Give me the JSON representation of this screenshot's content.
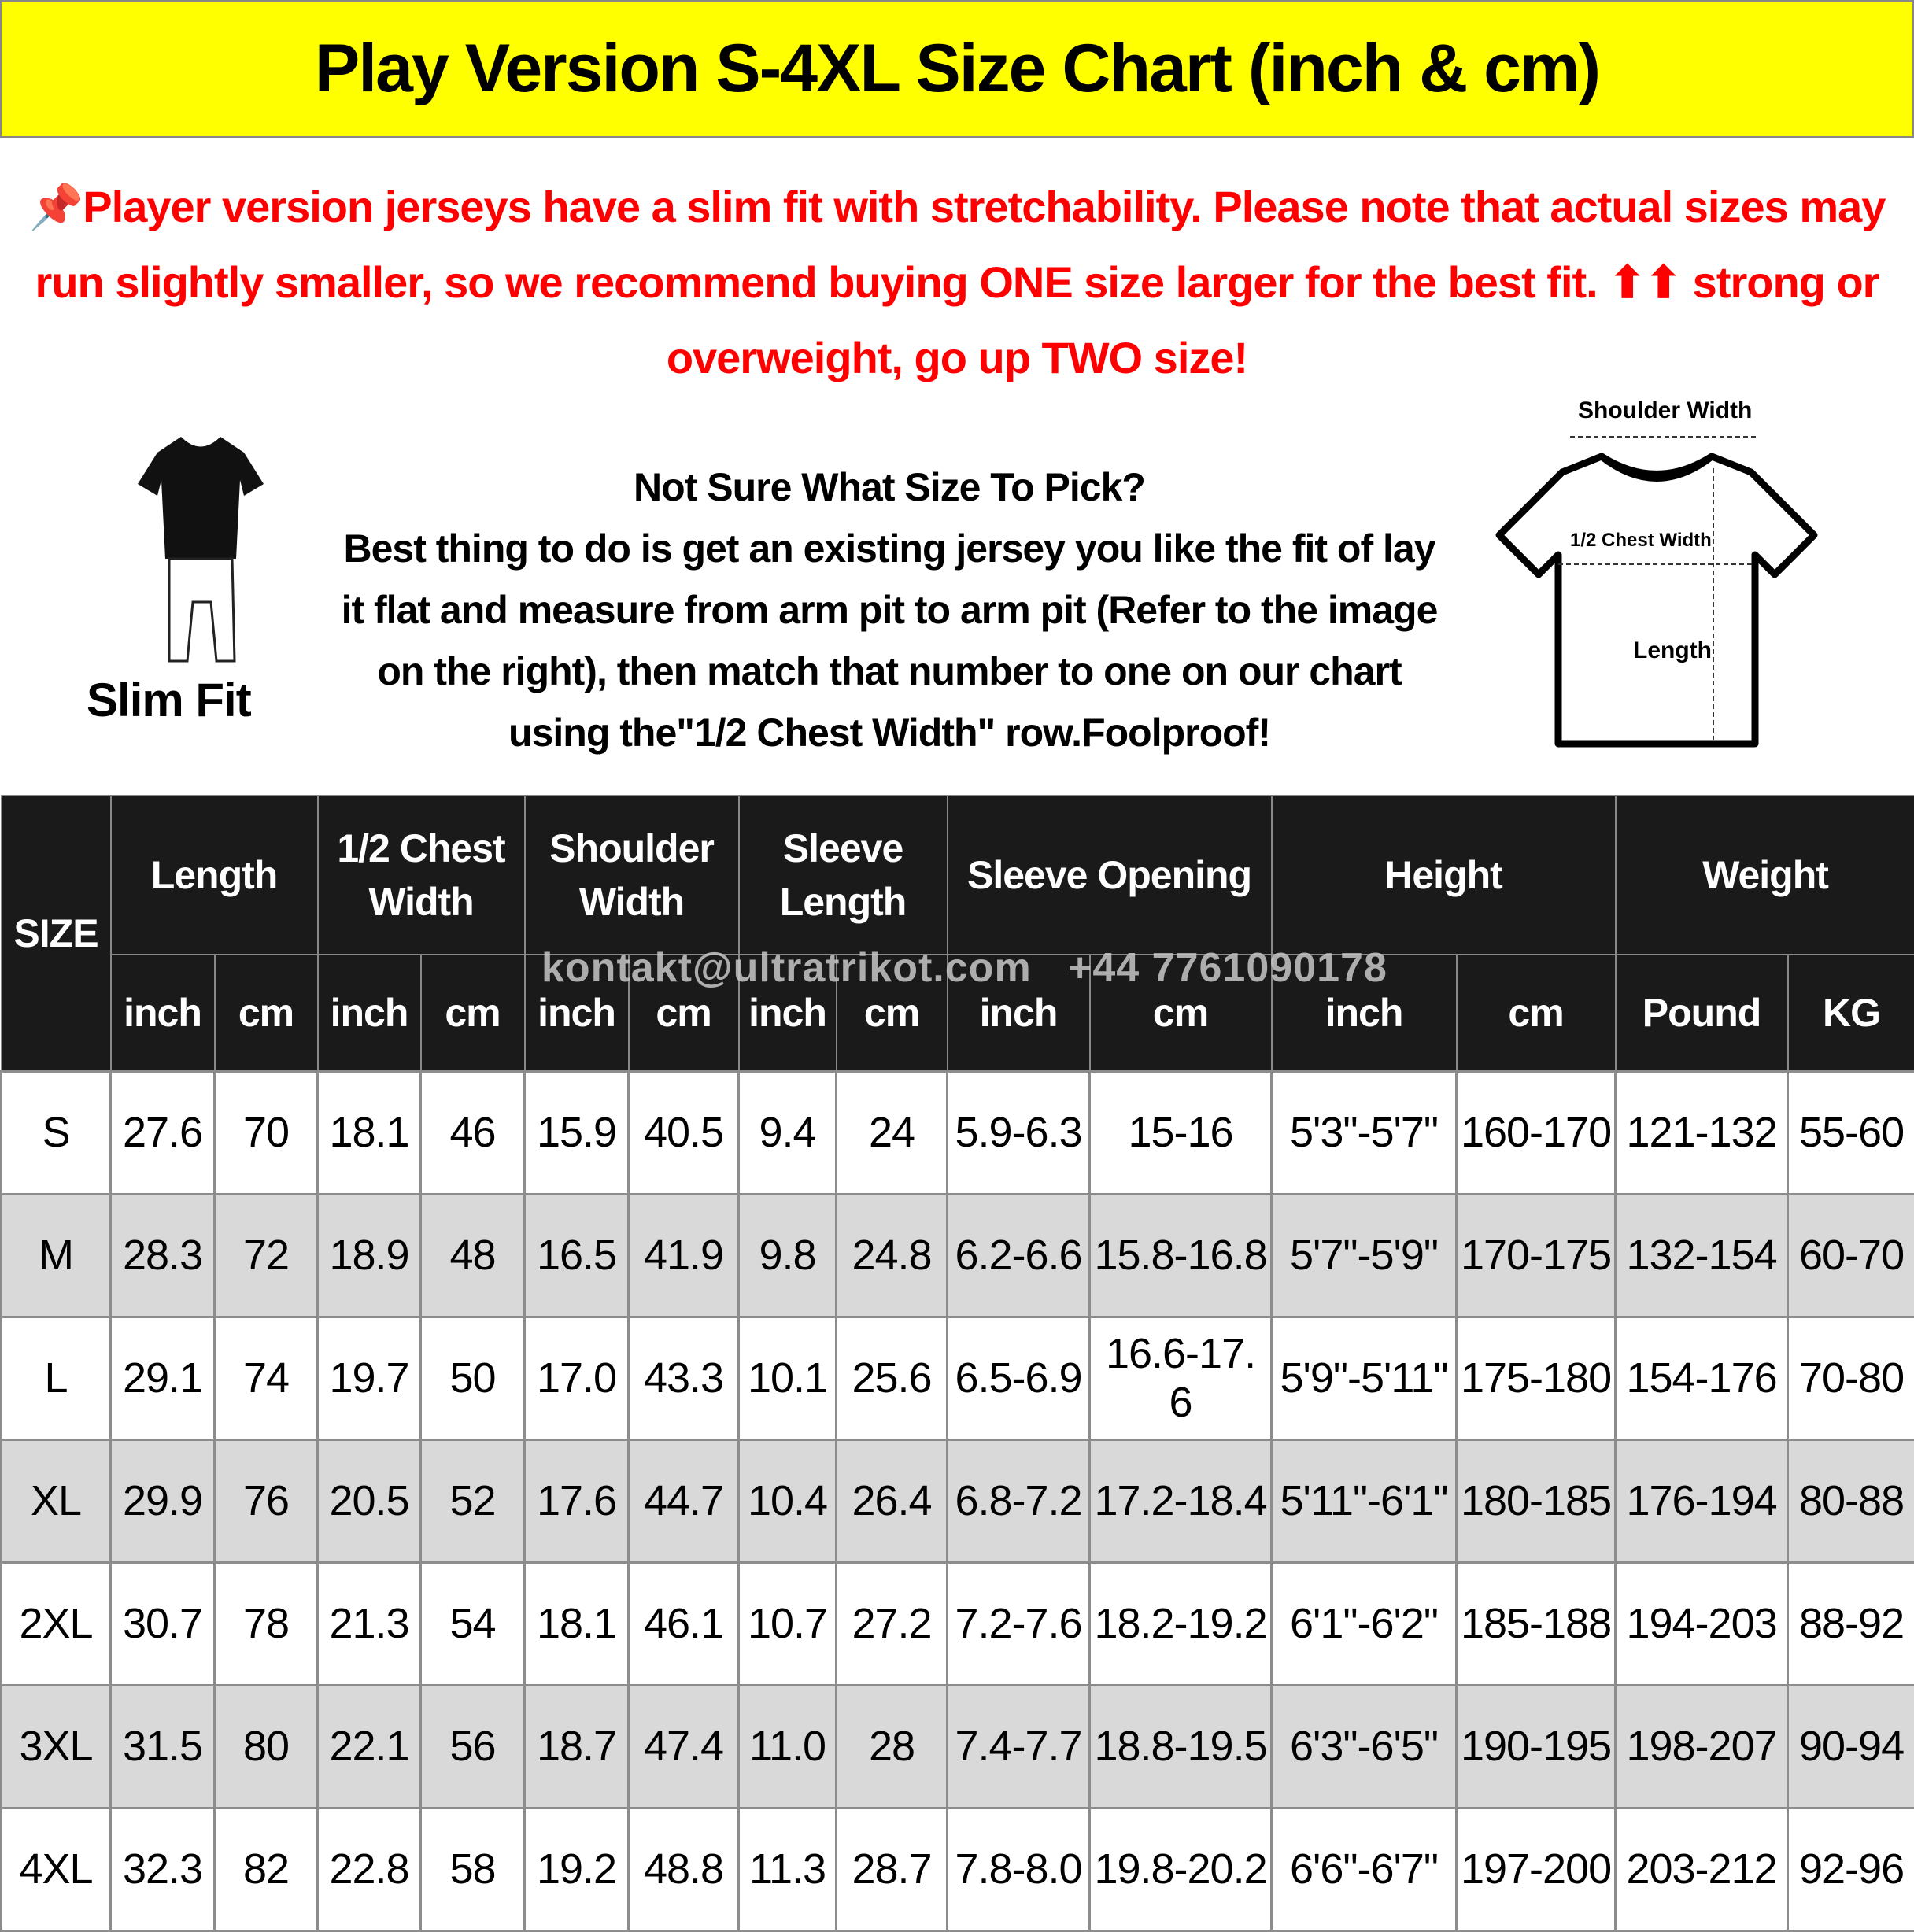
{
  "title": "Play Version S-4XL Size Chart (inch & cm)",
  "notice": {
    "icon": "pushpin-icon",
    "text": "Player version jerseys have a slim fit with stretchability. Please note that actual sizes may run slightly smaller, so we recommend buying ONE size larger for the best fit. ⬆⬆ strong or overweight, go up TWO size!"
  },
  "slim_fit_label": "Slim Fit",
  "advice": {
    "heading": "Not Sure What Size To Pick?",
    "body": "Best thing to do is get an existing jersey you like the fit of lay it flat and measure from arm pit to arm pit (Refer to the image on the right), then match that number to one on our chart using the\"1/2 Chest Width\" row.Foolproof!"
  },
  "diagram": {
    "shoulder": "Shoulder Width",
    "chest": "1/2 Chest Width",
    "length": "Length"
  },
  "watermark": "kontakt@ultratrikot.com   +44 7761090178",
  "colors": {
    "title_bg": "#ffff00",
    "notice": "#ff0000",
    "header_bg": "#1a1a1a",
    "alt_row": "#d9d9d9"
  },
  "table": {
    "size_header": "SIZE",
    "groups": [
      "Length",
      "1/2 Chest Width",
      "Shoulder Width",
      "Sleeve Length",
      "Sleeve Opening",
      "Height",
      "Weight"
    ],
    "units": [
      "inch",
      "cm",
      "inch",
      "cm",
      "inch",
      "cm",
      "inch",
      "cm",
      "inch",
      "cm",
      "inch",
      "cm",
      "Pound",
      "KG"
    ],
    "rows": [
      [
        "S",
        "27.6",
        "70",
        "18.1",
        "46",
        "15.9",
        "40.5",
        "9.4",
        "24",
        "5.9-6.3",
        "15-16",
        "5'3\"-5'7\"",
        "160-170",
        "121-132",
        "55-60"
      ],
      [
        "M",
        "28.3",
        "72",
        "18.9",
        "48",
        "16.5",
        "41.9",
        "9.8",
        "24.8",
        "6.2-6.6",
        "15.8-16.8",
        "5'7\"-5'9\"",
        "170-175",
        "132-154",
        "60-70"
      ],
      [
        "L",
        "29.1",
        "74",
        "19.7",
        "50",
        "17.0",
        "43.3",
        "10.1",
        "25.6",
        "6.5-6.9",
        "16.6-17. 6",
        "5'9\"-5'11\"",
        "175-180",
        "154-176",
        "70-80"
      ],
      [
        "XL",
        "29.9",
        "76",
        "20.5",
        "52",
        "17.6",
        "44.7",
        "10.4",
        "26.4",
        "6.8-7.2",
        "17.2-18.4",
        "5'11\"-6'1\"",
        "180-185",
        "176-194",
        "80-88"
      ],
      [
        "2XL",
        "30.7",
        "78",
        "21.3",
        "54",
        "18.1",
        "46.1",
        "10.7",
        "27.2",
        "7.2-7.6",
        "18.2-19.2",
        "6'1\"-6'2\"",
        "185-188",
        "194-203",
        "88-92"
      ],
      [
        "3XL",
        "31.5",
        "80",
        "22.1",
        "56",
        "18.7",
        "47.4",
        "11.0",
        "28",
        "7.4-7.7",
        "18.8-19.5",
        "6'3\"-6'5\"",
        "190-195",
        "198-207",
        "90-94"
      ],
      [
        "4XL",
        "32.3",
        "82",
        "22.8",
        "58",
        "19.2",
        "48.8",
        "11.3",
        "28.7",
        "7.8-8.0",
        "19.8-20.2",
        "6'6\"-6'7\"",
        "197-200",
        "203-212",
        "92-96"
      ]
    ]
  }
}
